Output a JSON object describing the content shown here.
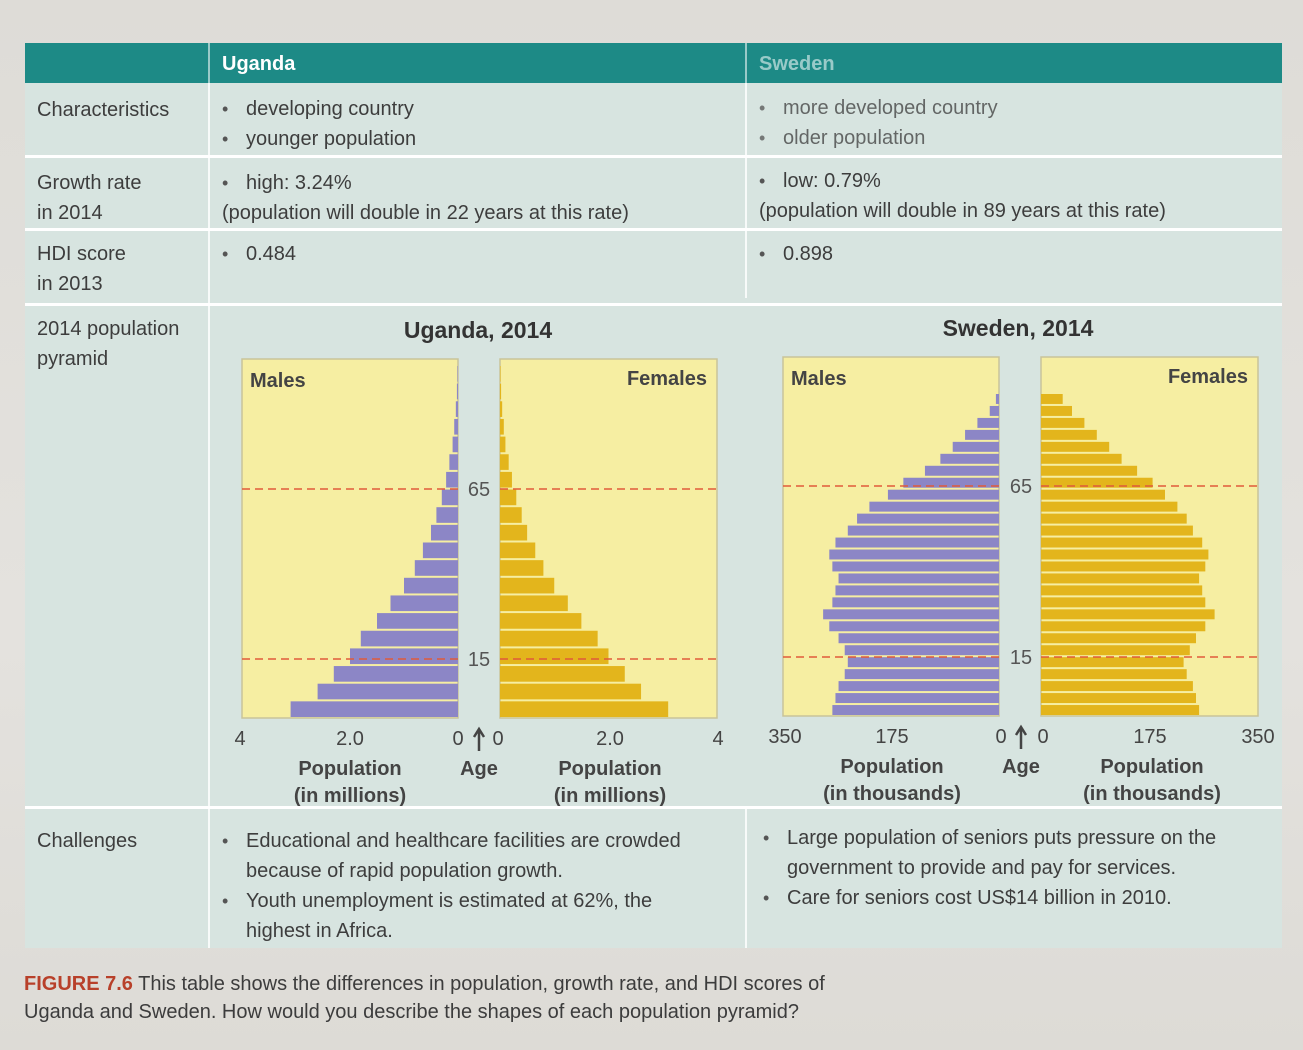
{
  "table": {
    "headers": {
      "col1": "Uganda",
      "col2": "Sweden"
    },
    "rows": {
      "characteristics": {
        "label": "Characteristics",
        "uganda": [
          "developing country",
          "younger population"
        ],
        "sweden": [
          "more developed country",
          "older population"
        ]
      },
      "growth": {
        "label_line1": "Growth rate",
        "label_line2": "in 2014",
        "uganda_bullet": "high: 3.24%",
        "uganda_note": "(population will double in 22 years at this rate)",
        "sweden_bullet": "low: 0.79%",
        "sweden_note": "(population will double in 89 years at this rate)"
      },
      "hdi": {
        "label_line1": "HDI score",
        "label_line2": "in 2013",
        "uganda": "0.484",
        "sweden": "0.898"
      },
      "pyramid": {
        "label_line1": "2014 population",
        "label_line2": "pyramid"
      },
      "challenges": {
        "label": "Challenges",
        "uganda_1_line1": "Educational and healthcare facilities are crowded",
        "uganda_1_line2": "because of rapid population growth.",
        "uganda_2_line1": "Youth unemployment is estimated at 62%, the",
        "uganda_2_line2": "highest in Africa.",
        "sweden_1_line1": "Large population of seniors puts pressure on the",
        "sweden_1_line2": "government to provide and pay for services.",
        "sweden_2": "Care for seniors cost US$14 billion in 2010."
      }
    }
  },
  "caption": {
    "figure_label": "FIGURE 7.6",
    "line1": " This table shows the differences in population, growth rate, and HDI scores of",
    "line2": "Uganda and Sweden. How would you describe the shapes of each population pyramid?"
  },
  "colors": {
    "header": "#1d8a86",
    "male": "#8c86c6",
    "female": "#e3b51c",
    "panel": "#f6eea2",
    "refline": "#e05a3a"
  },
  "chart_data": [
    {
      "type": "bar",
      "orientation": "horizontal-pyramid",
      "title": "Uganda, 2014",
      "xlabel": "Population (in millions)",
      "ylabel": "Age",
      "xlim": [
        0,
        4
      ],
      "x_ticks": [
        "4",
        "2.0",
        "0",
        "0",
        "2.0",
        "4"
      ],
      "age_markers": [
        "15",
        "65"
      ],
      "panel_labels": [
        "Males",
        "Females"
      ],
      "series": [
        {
          "name": "Males",
          "values": [
            3.1,
            2.6,
            2.3,
            2.0,
            1.8,
            1.5,
            1.25,
            1.0,
            0.8,
            0.65,
            0.5,
            0.4,
            0.3,
            0.22,
            0.16,
            0.1,
            0.07,
            0.04,
            0.02,
            0.01
          ]
        },
        {
          "name": "Females",
          "values": [
            3.1,
            2.6,
            2.3,
            2.0,
            1.8,
            1.5,
            1.25,
            1.0,
            0.8,
            0.65,
            0.5,
            0.4,
            0.3,
            0.22,
            0.16,
            0.1,
            0.07,
            0.04,
            0.02,
            0.01
          ]
        }
      ]
    },
    {
      "type": "bar",
      "orientation": "horizontal-pyramid",
      "title": "Sweden, 2014",
      "xlabel": "Population (in thousands)",
      "ylabel": "Age",
      "xlim": [
        0,
        350
      ],
      "x_ticks": [
        "350",
        "175",
        "0",
        "0",
        "175",
        "350"
      ],
      "age_markers": [
        "15",
        "65"
      ],
      "panel_labels": [
        "Males",
        "Females"
      ],
      "series": [
        {
          "name": "Males",
          "values": [
            270,
            265,
            260,
            250,
            245,
            250,
            260,
            275,
            285,
            270,
            265,
            260,
            270,
            275,
            265,
            245,
            230,
            210,
            180,
            155,
            120,
            95,
            75,
            55,
            35,
            15,
            5
          ]
        },
        {
          "name": "Females",
          "values": [
            255,
            250,
            245,
            235,
            230,
            240,
            250,
            265,
            280,
            265,
            260,
            255,
            265,
            270,
            260,
            245,
            235,
            220,
            200,
            180,
            155,
            130,
            110,
            90,
            70,
            50,
            35
          ]
        }
      ]
    }
  ]
}
